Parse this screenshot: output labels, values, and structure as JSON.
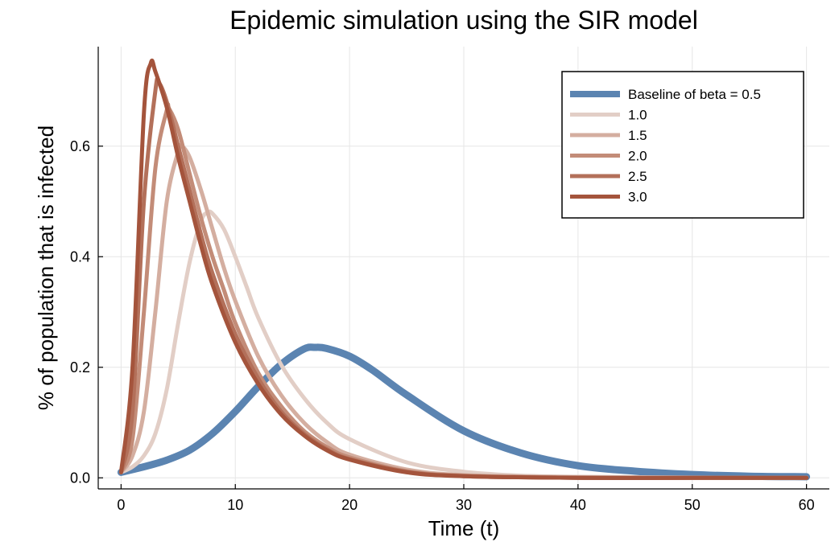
{
  "chart_data": {
    "type": "line",
    "title": "Epidemic simulation using the SIR model",
    "xlabel": "Time (t)",
    "ylabel": "% of population that is infected",
    "xlim": [
      -2,
      62
    ],
    "ylim": [
      -0.02,
      0.78
    ],
    "xticks": [
      0,
      10,
      20,
      30,
      40,
      50,
      60
    ],
    "xtick_labels": [
      "0",
      "10",
      "20",
      "30",
      "40",
      "50",
      "60"
    ],
    "yticks": [
      0.0,
      0.2,
      0.4,
      0.6
    ],
    "ytick_labels": [
      "0.0",
      "0.2",
      "0.4",
      "0.6"
    ],
    "grid": true,
    "legend_position": "top-right",
    "series": [
      {
        "name": "Baseline of beta = 0.5",
        "color": "#5b84b1",
        "x": [
          0,
          2,
          4,
          6,
          8,
          10,
          12,
          14,
          16,
          17,
          18,
          20,
          22,
          25,
          30,
          35,
          40,
          45,
          50,
          55,
          60
        ],
        "y": [
          0.01,
          0.02,
          0.032,
          0.05,
          0.08,
          0.12,
          0.165,
          0.205,
          0.233,
          0.236,
          0.234,
          0.22,
          0.195,
          0.15,
          0.085,
          0.045,
          0.022,
          0.012,
          0.006,
          0.003,
          0.002
        ]
      },
      {
        "name": "1.0",
        "color": "#e2cec6",
        "x": [
          0,
          1,
          2,
          3,
          4,
          5,
          6,
          7,
          7.6,
          8,
          9,
          10,
          11,
          12,
          14,
          16,
          18,
          20,
          25,
          30,
          35,
          40,
          50,
          60
        ],
        "y": [
          0.01,
          0.02,
          0.04,
          0.08,
          0.16,
          0.28,
          0.39,
          0.465,
          0.48,
          0.478,
          0.45,
          0.4,
          0.345,
          0.29,
          0.205,
          0.145,
          0.1,
          0.07,
          0.028,
          0.011,
          0.004,
          0.002,
          0.0005,
          0.0
        ]
      },
      {
        "name": "1.5",
        "color": "#d4aea0",
        "x": [
          0,
          1,
          2,
          3,
          4,
          5,
          5.3,
          6,
          7,
          8,
          9,
          10,
          12,
          14,
          16,
          18,
          20,
          25,
          30,
          40,
          50,
          60
        ],
        "y": [
          0.01,
          0.04,
          0.12,
          0.3,
          0.5,
          0.59,
          0.6,
          0.58,
          0.52,
          0.45,
          0.38,
          0.32,
          0.22,
          0.15,
          0.1,
          0.065,
          0.042,
          0.015,
          0.005,
          0.001,
          0.0,
          0.0
        ]
      },
      {
        "name": "2.0",
        "color": "#c38c78",
        "x": [
          0,
          1,
          2,
          3,
          4,
          4.2,
          5,
          6,
          7,
          8,
          9,
          10,
          12,
          14,
          16,
          18,
          20,
          25,
          30,
          40,
          50,
          60
        ],
        "y": [
          0.01,
          0.07,
          0.3,
          0.56,
          0.665,
          0.668,
          0.63,
          0.55,
          0.47,
          0.4,
          0.34,
          0.28,
          0.19,
          0.13,
          0.085,
          0.056,
          0.037,
          0.012,
          0.004,
          0.0,
          0.0,
          0.0
        ]
      },
      {
        "name": "2.5",
        "color": "#b3705a",
        "x": [
          0,
          1,
          2,
          3,
          3.3,
          4,
          5,
          6,
          7,
          8,
          10,
          12,
          14,
          16,
          18,
          20,
          25,
          30,
          40,
          50,
          60
        ],
        "y": [
          0.01,
          0.12,
          0.5,
          0.7,
          0.715,
          0.68,
          0.6,
          0.52,
          0.44,
          0.37,
          0.26,
          0.18,
          0.12,
          0.08,
          0.052,
          0.034,
          0.011,
          0.003,
          0.0,
          0.0,
          0.0
        ]
      },
      {
        "name": "3.0",
        "color": "#a4543c",
        "x": [
          0,
          1,
          2,
          2.6,
          3,
          4,
          5,
          6,
          7,
          8,
          10,
          12,
          14,
          16,
          18,
          20,
          25,
          30,
          40,
          50,
          60
        ],
        "y": [
          0.01,
          0.2,
          0.66,
          0.75,
          0.735,
          0.67,
          0.58,
          0.5,
          0.42,
          0.35,
          0.245,
          0.17,
          0.115,
          0.077,
          0.05,
          0.033,
          0.01,
          0.003,
          0.0,
          0.0,
          0.0
        ]
      }
    ]
  }
}
